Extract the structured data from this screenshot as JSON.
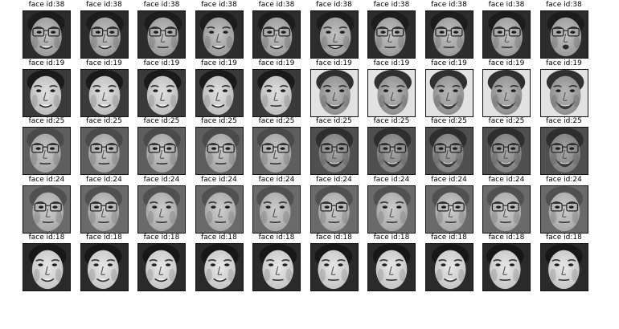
{
  "grid": {
    "rows": [
      {
        "title": "face id:38",
        "subjects": [
          {
            "id": "a",
            "glasses": true,
            "mouth": "smile"
          },
          {
            "id": "a",
            "glasses": true,
            "mouth": "smile"
          },
          {
            "id": "a",
            "glasses": true,
            "mouth": "neutral"
          },
          {
            "id": "a",
            "glasses": false,
            "mouth": "smile"
          },
          {
            "id": "a",
            "glasses": true,
            "mouth": "smile"
          },
          {
            "id": "a",
            "glasses": false,
            "mouth": "grin"
          },
          {
            "id": "a",
            "glasses": true,
            "mouth": "neutral"
          },
          {
            "id": "a",
            "glasses": true,
            "mouth": "neutral"
          },
          {
            "id": "a",
            "glasses": true,
            "mouth": "neutral"
          },
          {
            "id": "a",
            "glasses": true,
            "mouth": "open"
          }
        ]
      },
      {
        "title": "face id:19",
        "subjects": [
          {
            "id": "f",
            "glasses": false,
            "mouth": "smile"
          },
          {
            "id": "f",
            "glasses": false,
            "mouth": "smile"
          },
          {
            "id": "f",
            "glasses": false,
            "mouth": "smile"
          },
          {
            "id": "f",
            "glasses": false,
            "mouth": "smile"
          },
          {
            "id": "f",
            "glasses": false,
            "mouth": "neutral"
          },
          {
            "id": "b",
            "glasses": false,
            "mouth": "beard"
          },
          {
            "id": "b",
            "glasses": false,
            "mouth": "beard"
          },
          {
            "id": "b",
            "glasses": false,
            "mouth": "beard"
          },
          {
            "id": "b",
            "glasses": false,
            "mouth": "beard"
          },
          {
            "id": "b",
            "glasses": false,
            "mouth": "beard"
          }
        ]
      },
      {
        "title": "face id:25",
        "subjects": [
          {
            "id": "c",
            "glasses": true,
            "mouth": "neutral"
          },
          {
            "id": "c",
            "glasses": true,
            "mouth": "neutral"
          },
          {
            "id": "c",
            "glasses": true,
            "mouth": "neutral"
          },
          {
            "id": "c",
            "glasses": true,
            "mouth": "neutral"
          },
          {
            "id": "c",
            "glasses": true,
            "mouth": "neutral"
          },
          {
            "id": "d",
            "glasses": true,
            "mouth": "beard"
          },
          {
            "id": "d",
            "glasses": true,
            "mouth": "beard"
          },
          {
            "id": "d",
            "glasses": true,
            "mouth": "beard"
          },
          {
            "id": "d",
            "glasses": true,
            "mouth": "beard"
          },
          {
            "id": "d",
            "glasses": true,
            "mouth": "beard"
          }
        ]
      },
      {
        "title": "face id:24",
        "subjects": [
          {
            "id": "e",
            "glasses": true,
            "mouth": "neutral"
          },
          {
            "id": "e",
            "glasses": true,
            "mouth": "neutral"
          },
          {
            "id": "e",
            "glasses": false,
            "mouth": "neutral"
          },
          {
            "id": "e",
            "glasses": false,
            "mouth": "neutral"
          },
          {
            "id": "e",
            "glasses": false,
            "mouth": "neutral"
          },
          {
            "id": "e",
            "glasses": true,
            "mouth": "neutral"
          },
          {
            "id": "e",
            "glasses": false,
            "mouth": "neutral"
          },
          {
            "id": "e",
            "glasses": true,
            "mouth": "neutral"
          },
          {
            "id": "e",
            "glasses": true,
            "mouth": "neutral"
          },
          {
            "id": "e",
            "glasses": true,
            "mouth": "neutral"
          }
        ]
      },
      {
        "title": "face id:18",
        "subjects": [
          {
            "id": "g",
            "glasses": false,
            "mouth": "smile"
          },
          {
            "id": "g",
            "glasses": false,
            "mouth": "smile"
          },
          {
            "id": "g",
            "glasses": false,
            "mouth": "smile"
          },
          {
            "id": "g",
            "glasses": false,
            "mouth": "smile"
          },
          {
            "id": "g",
            "glasses": false,
            "mouth": "neutral"
          },
          {
            "id": "g",
            "glasses": false,
            "mouth": "neutral"
          },
          {
            "id": "g",
            "glasses": false,
            "mouth": "neutral"
          },
          {
            "id": "g",
            "glasses": false,
            "mouth": "smile"
          },
          {
            "id": "g",
            "glasses": false,
            "mouth": "neutral"
          },
          {
            "id": "g",
            "glasses": false,
            "mouth": "neutral"
          }
        ]
      }
    ]
  }
}
